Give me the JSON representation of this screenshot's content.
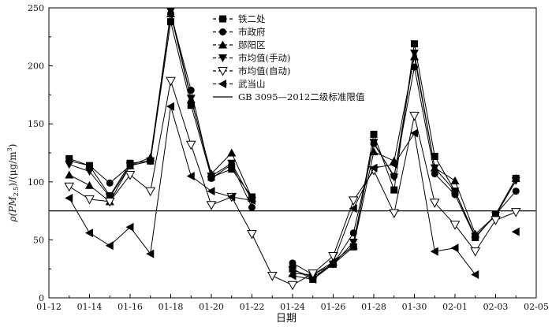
{
  "chart_data": {
    "type": "line",
    "title": "",
    "xlabel": "日期",
    "ylabel": "ρ(PM2.5)/(μg/m3)",
    "ylabel_parts": {
      "rho": "ρ(PM",
      "sub": "2.5",
      "mid": ")/(μg/m",
      "sup": "3",
      "end": ")"
    },
    "x_ticks": [
      "01-12",
      "01-14",
      "01-16",
      "01-18",
      "01-20",
      "01-22",
      "01-24",
      "01-26",
      "01-28",
      "01-30",
      "02-01",
      "02-03",
      "02-05"
    ],
    "y_ticks": [
      0,
      50,
      100,
      150,
      200,
      250
    ],
    "xlim_days": [
      0,
      24
    ],
    "x_start_date": "01-12",
    "ylim": [
      0,
      250
    ],
    "grid": false,
    "legend_position": "top-center",
    "reference_line": {
      "name": "GB 3095—2012二级标准限值",
      "value": 75
    },
    "series": [
      {
        "name": "铁二处",
        "marker": "square",
        "points": [
          [
            1,
            120
          ],
          [
            2,
            114
          ],
          [
            3,
            88
          ],
          [
            4,
            116
          ],
          [
            5,
            118
          ],
          [
            6,
            238
          ],
          [
            7,
            166
          ],
          [
            8,
            104
          ],
          [
            9,
            111
          ],
          [
            10,
            87
          ],
          [
            12,
            25
          ],
          [
            13,
            16
          ],
          [
            14,
            29
          ],
          [
            15,
            44
          ],
          [
            16,
            141
          ],
          [
            17,
            93
          ],
          [
            18,
            219
          ],
          [
            19,
            122
          ],
          [
            20,
            92
          ],
          [
            21,
            52
          ],
          [
            22,
            72
          ],
          [
            23,
            103
          ]
        ]
      },
      {
        "name": "市政府",
        "marker": "circle",
        "points": [
          [
            1,
            118
          ],
          [
            2,
            114
          ],
          [
            3,
            99
          ],
          [
            4,
            114
          ],
          [
            5,
            118
          ],
          [
            6,
            245
          ],
          [
            7,
            179
          ],
          [
            8,
            103
          ],
          [
            9,
            115
          ],
          [
            10,
            78
          ],
          [
            12,
            30
          ],
          [
            13,
            20
          ],
          [
            14,
            29
          ],
          [
            15,
            56
          ],
          [
            16,
            133
          ],
          [
            17,
            105
          ],
          [
            18,
            199
          ],
          [
            19,
            107
          ],
          [
            20,
            89
          ],
          [
            21,
            52
          ],
          [
            22,
            72
          ],
          [
            23,
            92
          ]
        ]
      },
      {
        "name": "郧阳区",
        "marker": "triangle-up",
        "points": [
          [
            1,
            106
          ],
          [
            2,
            97
          ],
          [
            3,
            83
          ],
          [
            4,
            114
          ],
          [
            5,
            121
          ],
          [
            6,
            245
          ],
          [
            7,
            171
          ],
          [
            8,
            107
          ],
          [
            9,
            125
          ],
          [
            10,
            86
          ],
          [
            12,
            21
          ],
          [
            13,
            20
          ],
          [
            14,
            31
          ],
          [
            15,
            45
          ],
          [
            16,
            126
          ],
          [
            17,
            118
          ],
          [
            18,
            208
          ],
          [
            19,
            112
          ],
          [
            20,
            101
          ],
          [
            21,
            55
          ],
          [
            22,
            71
          ],
          [
            23,
            103
          ]
        ]
      },
      {
        "name": "市均值(手动)",
        "marker": "triangle-down",
        "points": [
          [
            1,
            115
          ],
          [
            2,
            109
          ],
          [
            3,
            87
          ],
          [
            4,
            114
          ],
          [
            5,
            118
          ],
          [
            6,
            247
          ],
          [
            7,
            172
          ],
          [
            8,
            105
          ],
          [
            9,
            116
          ],
          [
            10,
            84
          ],
          [
            12,
            24
          ],
          [
            13,
            18
          ],
          [
            14,
            29
          ],
          [
            15,
            48
          ],
          [
            16,
            134
          ],
          [
            17,
            104
          ],
          [
            18,
            211
          ],
          [
            19,
            112
          ],
          [
            20,
            92
          ],
          [
            21,
            53
          ],
          [
            22,
            71
          ],
          [
            23,
            101
          ]
        ]
      },
      {
        "name": "市均值(自动)",
        "marker": "triangle-down-open",
        "points": [
          [
            1,
            96
          ],
          [
            2,
            85
          ],
          [
            3,
            83
          ],
          [
            4,
            106
          ],
          [
            5,
            92
          ],
          [
            6,
            187
          ],
          [
            7,
            132
          ],
          [
            8,
            80
          ],
          [
            9,
            87
          ],
          [
            10,
            55
          ],
          [
            11,
            19
          ],
          [
            12,
            11
          ],
          [
            13,
            21
          ],
          [
            14,
            36
          ],
          [
            15,
            84
          ],
          [
            16,
            110
          ],
          [
            17,
            73
          ],
          [
            18,
            157
          ],
          [
            19,
            82
          ],
          [
            20,
            63
          ],
          [
            21,
            40
          ],
          [
            22,
            67
          ],
          [
            23,
            74
          ]
        ]
      },
      {
        "name": "武当山",
        "marker": "triangle-left",
        "points": [
          [
            1,
            86
          ],
          [
            2,
            56
          ],
          [
            3,
            45
          ],
          [
            4,
            61
          ],
          [
            5,
            38
          ],
          [
            6,
            165
          ],
          [
            7,
            105
          ],
          [
            8,
            92
          ],
          [
            9,
            87
          ],
          [
            10,
            84
          ],
          [
            12,
            19
          ],
          [
            13,
            16
          ],
          [
            14,
            31
          ],
          [
            15,
            77
          ],
          [
            16,
            112
          ],
          [
            17,
            115
          ],
          [
            18,
            142
          ],
          [
            19,
            40
          ],
          [
            20,
            43
          ],
          [
            21,
            20
          ],
          [
            23,
            57
          ]
        ]
      }
    ]
  }
}
